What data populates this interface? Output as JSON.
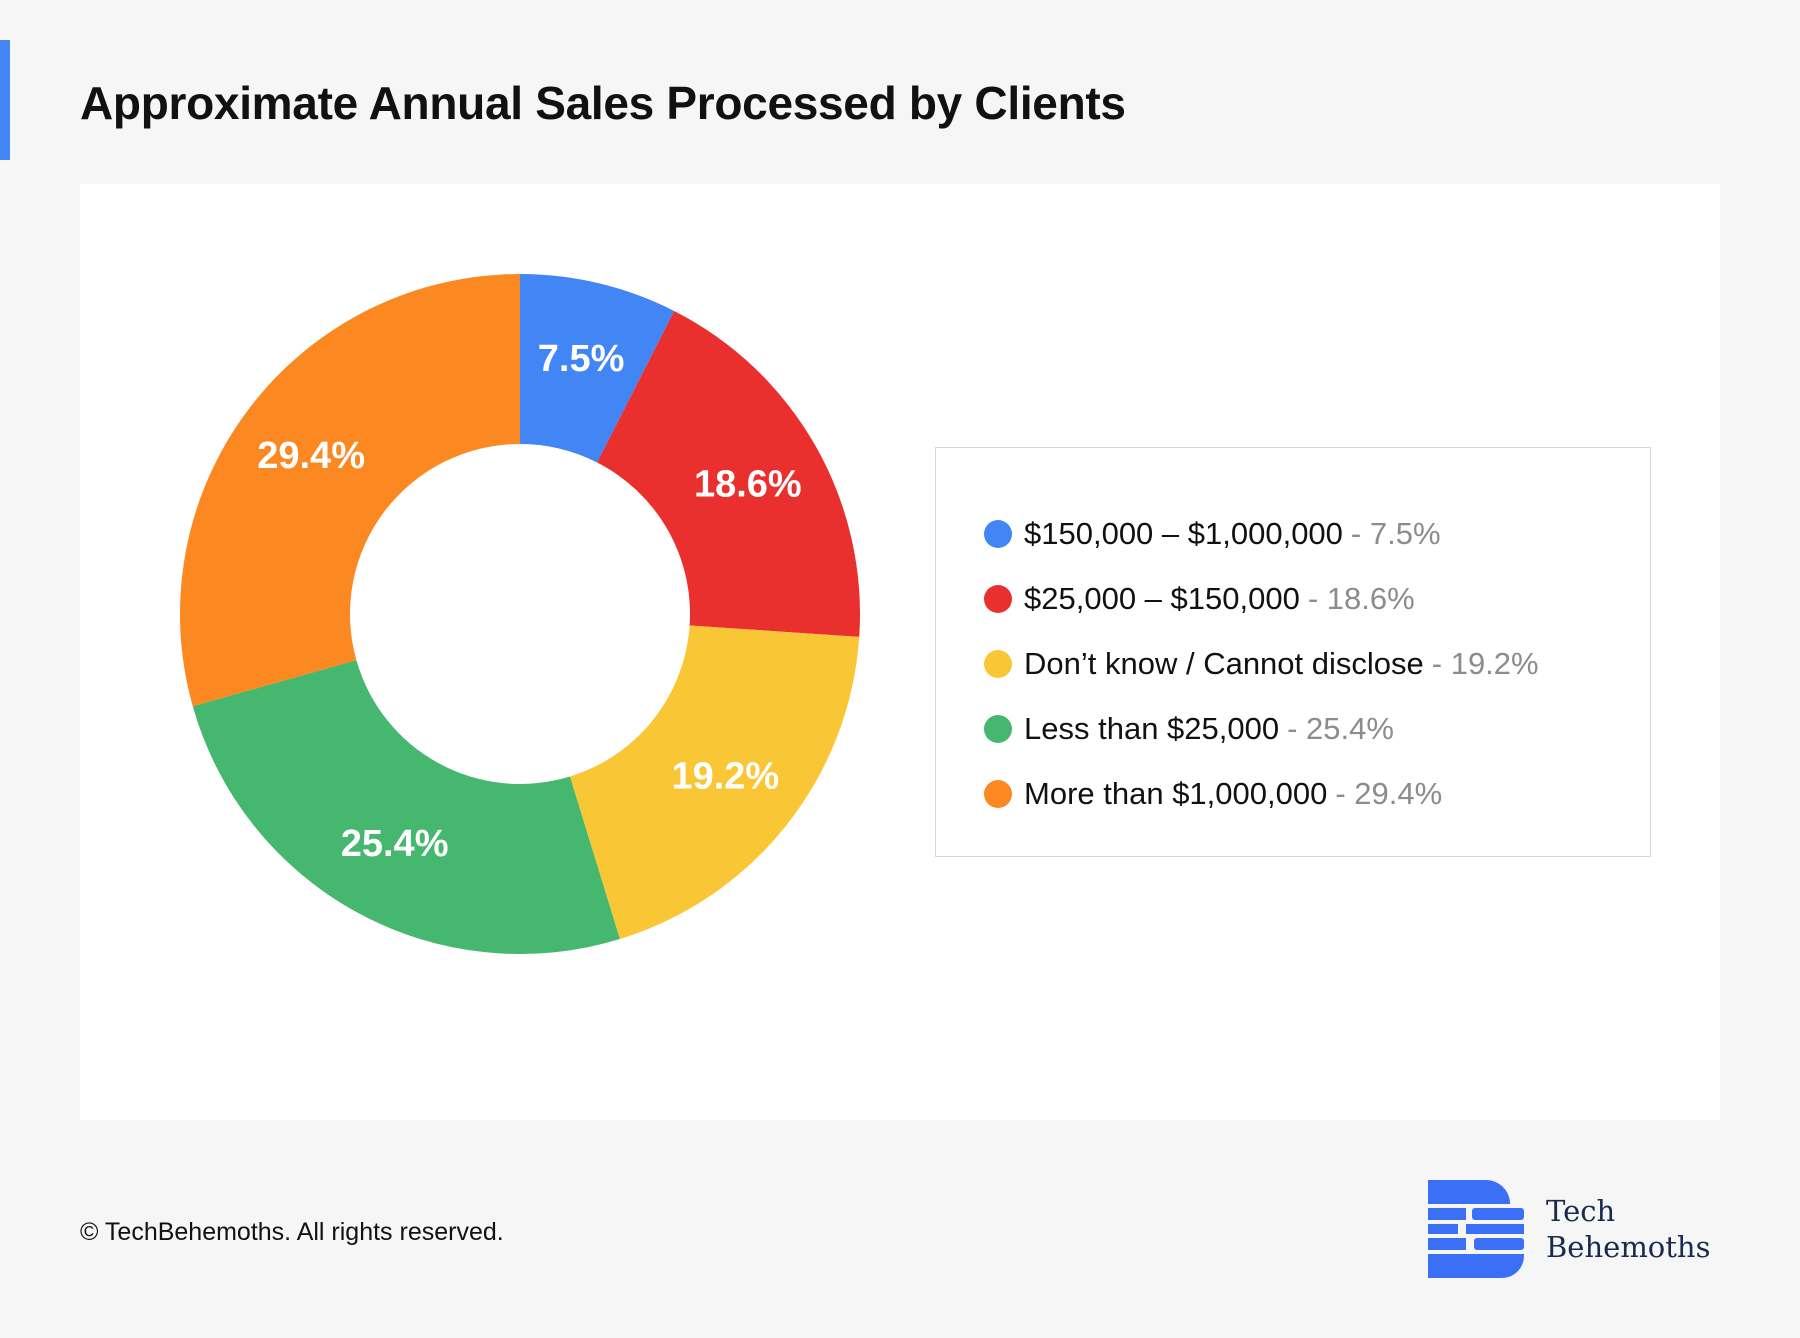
{
  "page": {
    "title": "Approximate Annual Sales Processed by Clients",
    "copyright": "© TechBehemoths. All rights reserved.",
    "brand": {
      "line1": "Tech",
      "line2": "Behemoths",
      "color": "#3b6ff5"
    }
  },
  "chart_data": {
    "type": "pie",
    "title": "Approximate Annual Sales Processed by Clients",
    "style": "donut",
    "legend_position": "right",
    "slices": [
      {
        "label": "$150,000 – $1,000,000",
        "value": 7.5,
        "display": "7.5%",
        "legend_value": "- 7.5%",
        "color": "#4285f4"
      },
      {
        "label": "$25,000 – $150,000",
        "value": 18.6,
        "display": "18.6%",
        "legend_value": "- 18.6%",
        "color": "#ea2f2f"
      },
      {
        "label": "Don’t know / Cannot disclose",
        "value": 19.2,
        "display": "19.2%",
        "legend_value": "- 19.2%",
        "color": "#f9c735"
      },
      {
        "label": "Less than $25,000",
        "value": 25.4,
        "display": "25.4%",
        "legend_value": "- 25.4%",
        "color": "#45b76e"
      },
      {
        "label": "More than $1,000,000",
        "value": 29.4,
        "display": "29.4%",
        "legend_value": "- 29.4%",
        "color": "#fb8820"
      }
    ]
  }
}
